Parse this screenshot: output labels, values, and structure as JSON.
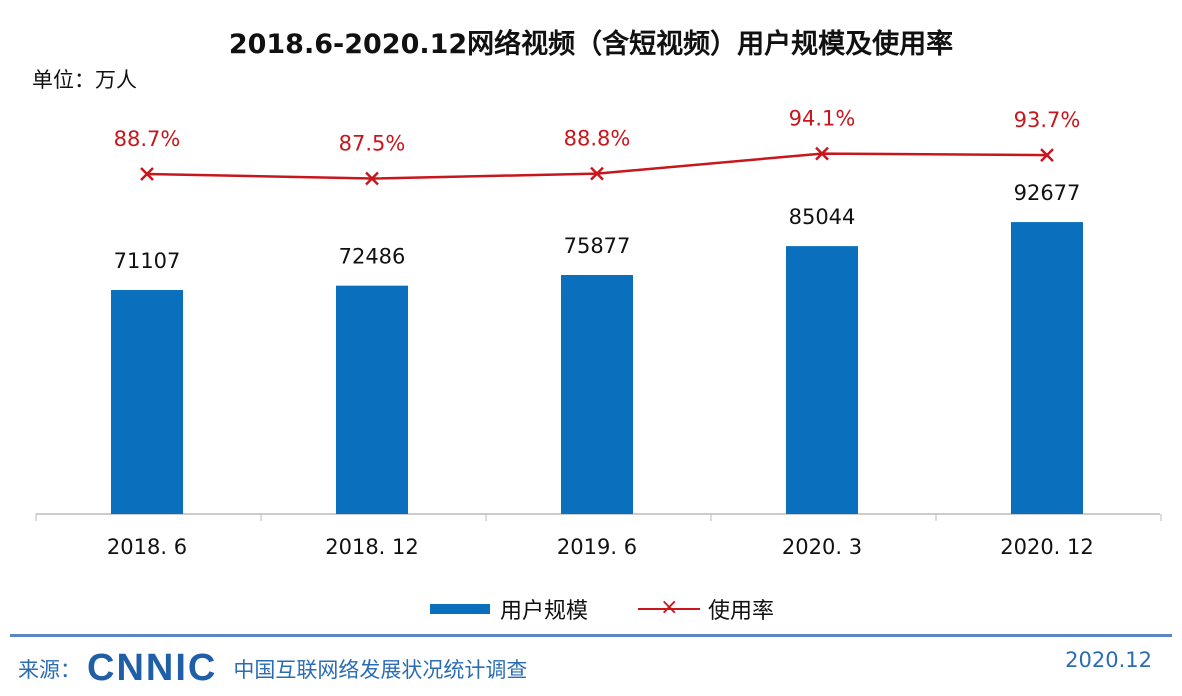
{
  "title": "2018.6-2020.12网络视频（含短视频）用户规模及使用率",
  "unit_label": "单位：万人",
  "watermark": "CNNIC",
  "chart_data": {
    "type": "bar",
    "title": "2018.6-2020.12网络视频（含短视频）用户规模及使用率",
    "categories": [
      "2018. 6",
      "2018. 12",
      "2019. 6",
      "2020. 3",
      "2020. 12"
    ],
    "series": [
      {
        "name": "用户规模",
        "type": "bar",
        "color": "#0a70be",
        "values": [
          71107,
          72486,
          75877,
          85044,
          92677
        ],
        "labels": [
          "71107",
          "72486",
          "75877",
          "85044",
          "92677"
        ]
      },
      {
        "name": "使用率",
        "type": "line",
        "color": "#c8161d",
        "marker": "x",
        "values": [
          88.7,
          87.5,
          88.8,
          94.1,
          93.7
        ],
        "labels": [
          "88.7%",
          "87.5%",
          "88.8%",
          "94.1%",
          "93.7%"
        ]
      }
    ],
    "legend": "bottom",
    "grid": false
  },
  "legend": {
    "bar": "用户规模",
    "line": "使用率",
    "marker": "×"
  },
  "footer": {
    "source_label": "来源：",
    "logo": "CNNIC",
    "survey": "中国互联网络发展状况统计调查",
    "date": "2020.12"
  }
}
